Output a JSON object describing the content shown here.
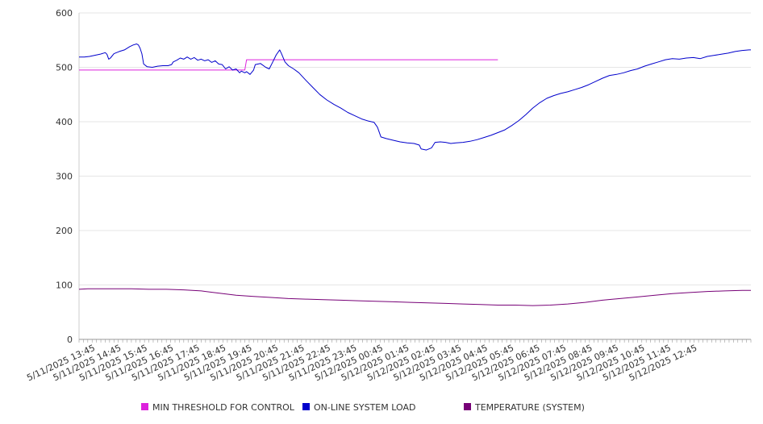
{
  "chart_data": {
    "type": "line",
    "ylim": [
      0,
      600
    ],
    "yticks": [
      0,
      100,
      200,
      300,
      400,
      500,
      600
    ],
    "x_tick_labels": [
      "5/11/2025 13:45",
      "5/11/2025 14:45",
      "5/11/2025 15:45",
      "5/11/2025 16:45",
      "5/11/2025 17:45",
      "5/11/2025 18:45",
      "5/11/2025 19:45",
      "5/11/2025 20:45",
      "5/11/2025 21:45",
      "5/11/2025 22:45",
      "5/11/2025 23:45",
      "5/12/2025 00:45",
      "5/12/2025 01:45",
      "5/12/2025 02:45",
      "5/12/2025 03:45",
      "5/12/2025 04:45",
      "5/12/2025 05:45",
      "5/12/2025 06:45",
      "5/12/2025 07:45",
      "5/12/2025 08:45",
      "5/12/2025 09:45",
      "5/12/2025 10:45",
      "5/12/2025 11:45",
      "5/12/2025 12:45"
    ],
    "x_hours": [
      0,
      24
    ],
    "grid": true,
    "legend_position": "bottom",
    "series": [
      {
        "name": "MIN THRESHOLD FOR CONTROL",
        "color": "#dd22dd",
        "points": [
          [
            0,
            495
          ],
          [
            9.5,
            495
          ],
          [
            9.6,
            514
          ],
          [
            24,
            514
          ]
        ]
      },
      {
        "name": "ON-LINE SYSTEM LOAD",
        "color": "#0000cc",
        "points": [
          [
            0,
            519
          ],
          [
            0.3,
            519
          ],
          [
            0.6,
            520
          ],
          [
            0.9,
            522
          ],
          [
            1.2,
            524
          ],
          [
            1.5,
            527
          ],
          [
            1.6,
            524
          ],
          [
            1.7,
            515
          ],
          [
            1.8,
            517
          ],
          [
            2.0,
            525
          ],
          [
            2.3,
            529
          ],
          [
            2.6,
            532
          ],
          [
            2.9,
            538
          ],
          [
            3.1,
            541
          ],
          [
            3.3,
            543
          ],
          [
            3.4,
            541
          ],
          [
            3.5,
            535
          ],
          [
            3.6,
            525
          ],
          [
            3.7,
            506
          ],
          [
            3.9,
            501
          ],
          [
            4.2,
            500
          ],
          [
            4.5,
            502
          ],
          [
            4.8,
            503
          ],
          [
            5.1,
            503
          ],
          [
            5.3,
            505
          ],
          [
            5.4,
            510
          ],
          [
            5.6,
            513
          ],
          [
            5.8,
            517
          ],
          [
            6.0,
            515
          ],
          [
            6.2,
            519
          ],
          [
            6.4,
            515
          ],
          [
            6.6,
            518
          ],
          [
            6.8,
            513
          ],
          [
            7.0,
            515
          ],
          [
            7.2,
            512
          ],
          [
            7.4,
            514
          ],
          [
            7.6,
            509
          ],
          [
            7.8,
            512
          ],
          [
            8.0,
            506
          ],
          [
            8.2,
            505
          ],
          [
            8.4,
            497
          ],
          [
            8.6,
            501
          ],
          [
            8.8,
            495
          ],
          [
            9.0,
            497
          ],
          [
            9.2,
            490
          ],
          [
            9.3,
            493
          ],
          [
            9.5,
            490
          ],
          [
            9.6,
            492
          ],
          [
            9.8,
            487
          ],
          [
            10.0,
            495
          ],
          [
            10.1,
            505
          ],
          [
            10.4,
            507
          ],
          [
            10.7,
            500
          ],
          [
            10.9,
            497
          ],
          [
            11.1,
            510
          ],
          [
            11.3,
            523
          ],
          [
            11.5,
            532
          ],
          [
            11.6,
            525
          ],
          [
            11.8,
            510
          ],
          [
            12.0,
            503
          ],
          [
            12.3,
            497
          ],
          [
            12.6,
            490
          ],
          [
            13.0,
            476
          ],
          [
            13.4,
            463
          ],
          [
            13.8,
            450
          ],
          [
            14.2,
            440
          ],
          [
            14.6,
            432
          ],
          [
            15.0,
            425
          ],
          [
            15.4,
            417
          ],
          [
            15.8,
            411
          ],
          [
            16.2,
            405
          ],
          [
            16.6,
            401
          ],
          [
            16.9,
            399
          ],
          [
            17.1,
            390
          ],
          [
            17.3,
            372
          ],
          [
            17.6,
            369
          ],
          [
            18.0,
            366
          ],
          [
            18.4,
            363
          ],
          [
            18.8,
            361
          ],
          [
            19.2,
            360
          ],
          [
            19.5,
            357
          ],
          [
            19.6,
            350
          ],
          [
            19.9,
            348
          ],
          [
            20.2,
            352
          ],
          [
            20.4,
            362
          ],
          [
            20.7,
            363
          ],
          [
            21.0,
            362
          ],
          [
            21.3,
            360
          ],
          [
            21.6,
            361
          ],
          [
            22.0,
            362
          ],
          [
            22.4,
            364
          ],
          [
            22.8,
            367
          ],
          [
            23.2,
            371
          ],
          [
            23.6,
            375
          ],
          [
            24.0,
            380
          ],
          [
            24.4,
            385
          ],
          [
            24.8,
            393
          ],
          [
            25.2,
            402
          ],
          [
            25.6,
            413
          ],
          [
            26.0,
            425
          ],
          [
            26.4,
            435
          ],
          [
            26.8,
            443
          ],
          [
            27.2,
            448
          ],
          [
            27.6,
            452
          ],
          [
            28.0,
            455
          ],
          [
            28.4,
            459
          ],
          [
            28.8,
            463
          ],
          [
            29.2,
            468
          ],
          [
            29.6,
            474
          ],
          [
            30.0,
            480
          ],
          [
            30.4,
            485
          ],
          [
            30.8,
            487
          ],
          [
            31.2,
            490
          ],
          [
            31.6,
            494
          ],
          [
            32.0,
            497
          ],
          [
            32.4,
            502
          ],
          [
            32.8,
            506
          ],
          [
            33.2,
            510
          ],
          [
            33.6,
            514
          ],
          [
            34.0,
            516
          ],
          [
            34.4,
            515
          ],
          [
            34.8,
            517
          ],
          [
            35.2,
            518
          ],
          [
            35.6,
            516
          ],
          [
            36.0,
            520
          ],
          [
            36.4,
            522
          ],
          [
            36.8,
            524
          ],
          [
            37.2,
            526
          ],
          [
            37.6,
            529
          ],
          [
            38.0,
            531
          ],
          [
            38.4,
            532
          ],
          [
            38.5,
            532
          ]
        ]
      },
      {
        "name": "TEMPERATURE (SYSTEM)",
        "color": "#770077",
        "points": [
          [
            0,
            92
          ],
          [
            0.5,
            93
          ],
          [
            1,
            93
          ],
          [
            2,
            93
          ],
          [
            3,
            93
          ],
          [
            4,
            92
          ],
          [
            5,
            92
          ],
          [
            6,
            91
          ],
          [
            7,
            89
          ],
          [
            8,
            85
          ],
          [
            9,
            81
          ],
          [
            10,
            79
          ],
          [
            11,
            77
          ],
          [
            12,
            75
          ],
          [
            13,
            74
          ],
          [
            14,
            73
          ],
          [
            15,
            72
          ],
          [
            16,
            71
          ],
          [
            17,
            70
          ],
          [
            18,
            69
          ],
          [
            19,
            68
          ],
          [
            20,
            67
          ],
          [
            21,
            66
          ],
          [
            22,
            65
          ],
          [
            23,
            64
          ],
          [
            24,
            63
          ],
          [
            25,
            63
          ],
          [
            26,
            62
          ],
          [
            27,
            63
          ],
          [
            28,
            65
          ],
          [
            29,
            68
          ],
          [
            30,
            72
          ],
          [
            31,
            75
          ],
          [
            32,
            78
          ],
          [
            33,
            81
          ],
          [
            34,
            84
          ],
          [
            35,
            86
          ],
          [
            36,
            88
          ],
          [
            37,
            89
          ],
          [
            38,
            90
          ],
          [
            38.5,
            90
          ]
        ]
      }
    ]
  }
}
